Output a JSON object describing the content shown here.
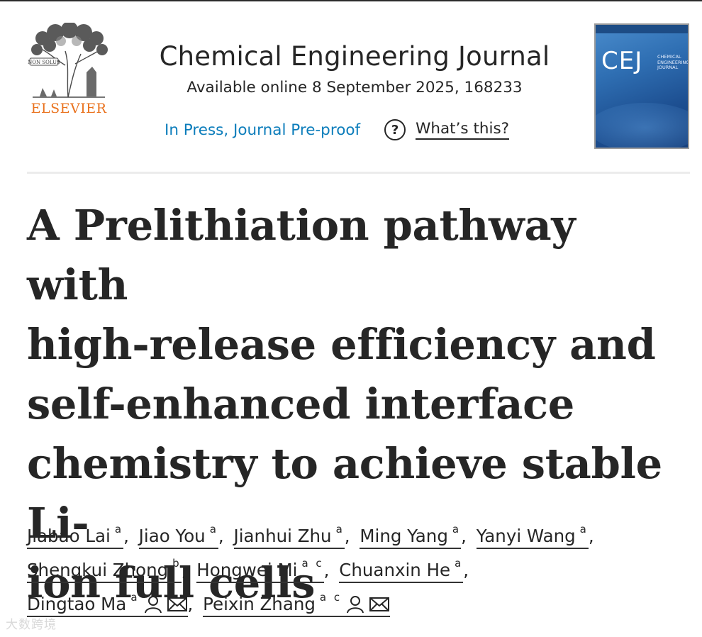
{
  "publisher": {
    "name": "ELSEVIER",
    "logo_motto": "NON SOLUS"
  },
  "journal": {
    "title": "Chemical Engineering Journal",
    "available": "Available online 8 September 2025, 168233",
    "status_link": "In Press, Journal Pre-proof",
    "help_link": "What’s this?",
    "cover": {
      "abbr": "CEJ",
      "name": "Chemical Engineering Journal"
    }
  },
  "article": {
    "title_lines": [
      "A Prelithiation pathway with",
      "high-release efficiency and",
      "self-enhanced interface",
      "chemistry to achieve stable Li-",
      "ion full cells"
    ]
  },
  "authors": [
    {
      "name": "Jiabao Lai",
      "aff": "a"
    },
    {
      "name": "Jiao You",
      "aff": "a"
    },
    {
      "name": "Jianhui Zhu",
      "aff": "a"
    },
    {
      "name": "Ming Yang",
      "aff": "a"
    },
    {
      "name": "Yanyi Wang",
      "aff": "a"
    },
    {
      "name": "Shengkui Zhong",
      "aff": "b"
    },
    {
      "name": "Hongwei Mi",
      "aff": "a c"
    },
    {
      "name": "Chuanxin He",
      "aff": "a"
    },
    {
      "name": "Dingtao Ma",
      "aff": "a",
      "corresponding": true
    },
    {
      "name": "Peixin Zhang",
      "aff": "a c",
      "corresponding": true
    }
  ],
  "icons": {
    "help": "question-circle-icon",
    "person": "person-icon",
    "email": "envelope-icon"
  },
  "colors": {
    "link": "#0c7dbb",
    "publisher": "#e9711c",
    "text": "#262626"
  },
  "watermark": "大数跨境"
}
